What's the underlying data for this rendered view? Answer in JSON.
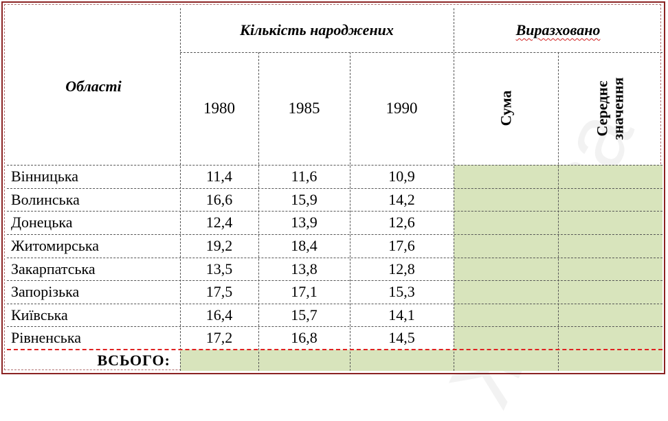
{
  "header": {
    "regions_label": "Області",
    "births_label": "Кількість народжених",
    "computed_label": "Виразховано",
    "years": [
      "1980",
      "1985",
      "1990"
    ],
    "sum_label": "Сума",
    "avg_label_line1": "Середнє",
    "avg_label_line2": "значення"
  },
  "rows": [
    {
      "region": "Вінницька",
      "v1980": "11,4",
      "v1985": "11,6",
      "v1990": "10,9"
    },
    {
      "region": "Волинська",
      "v1980": "16,6",
      "v1985": "15,9",
      "v1990": "14,2"
    },
    {
      "region": "Донецька",
      "v1980": "12,4",
      "v1985": "13,9",
      "v1990": "12,6"
    },
    {
      "region": "Житомирська",
      "v1980": "19,2",
      "v1985": "18,4",
      "v1990": "17,6"
    },
    {
      "region": "Закарпатська",
      "v1980": "13,5",
      "v1985": "13,8",
      "v1990": "12,8"
    },
    {
      "region": "Запорізька",
      "v1980": "17,5",
      "v1985": "17,1",
      "v1990": "15,3"
    },
    {
      "region": "Київська",
      "v1980": "16,4",
      "v1985": "15,7",
      "v1990": "14,1"
    },
    {
      "region": "Рівненська",
      "v1980": "17,2",
      "v1985": "16,8",
      "v1990": "14,5"
    }
  ],
  "footer": {
    "total_label": "ВСЬОГО:"
  },
  "colors": {
    "frame": "#8b2323",
    "fill": "#d8e4bc",
    "total_line": "#e02020"
  }
}
